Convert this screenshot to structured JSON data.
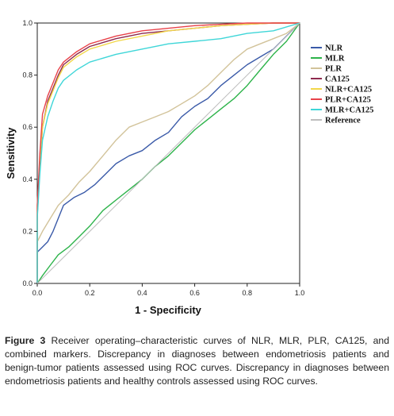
{
  "chart_data": {
    "type": "line",
    "xlabel": "1 - Specificity",
    "ylabel": "Sensitivity",
    "xlim": [
      0.0,
      1.0
    ],
    "ylim": [
      0.0,
      1.0
    ],
    "xticks": [
      "0.0",
      "0.2",
      "0.4",
      "0.6",
      "0.8",
      "1.0"
    ],
    "yticks": [
      "0.0",
      "0.2",
      "0.4",
      "0.6",
      "0.8",
      "1.0"
    ],
    "grid": false,
    "legend_position": "right",
    "series": [
      {
        "name": "NLR",
        "color": "#3a5aa8",
        "x": [
          0,
          0,
          0.02,
          0.04,
          0.06,
          0.08,
          0.1,
          0.14,
          0.18,
          0.22,
          0.26,
          0.3,
          0.35,
          0.4,
          0.45,
          0.5,
          0.55,
          0.6,
          0.65,
          0.7,
          0.75,
          0.8,
          0.85,
          0.9,
          0.95,
          1.0
        ],
        "y": [
          0,
          0.12,
          0.14,
          0.16,
          0.2,
          0.25,
          0.3,
          0.33,
          0.35,
          0.38,
          0.42,
          0.46,
          0.49,
          0.51,
          0.55,
          0.58,
          0.64,
          0.68,
          0.71,
          0.76,
          0.8,
          0.84,
          0.87,
          0.9,
          0.95,
          1.0
        ]
      },
      {
        "name": "MLR",
        "color": "#2db34a",
        "x": [
          0,
          0.02,
          0.05,
          0.08,
          0.12,
          0.16,
          0.2,
          0.25,
          0.3,
          0.35,
          0.4,
          0.45,
          0.5,
          0.55,
          0.6,
          0.65,
          0.7,
          0.75,
          0.8,
          0.85,
          0.9,
          0.95,
          1.0
        ],
        "y": [
          0,
          0.03,
          0.07,
          0.11,
          0.14,
          0.18,
          0.22,
          0.28,
          0.32,
          0.36,
          0.4,
          0.45,
          0.49,
          0.54,
          0.59,
          0.63,
          0.67,
          0.71,
          0.76,
          0.82,
          0.88,
          0.93,
          1.0
        ]
      },
      {
        "name": "PLR",
        "color": "#d2c39a",
        "x": [
          0,
          0,
          0.02,
          0.05,
          0.08,
          0.12,
          0.16,
          0.2,
          0.25,
          0.3,
          0.35,
          0.4,
          0.45,
          0.5,
          0.55,
          0.6,
          0.65,
          0.7,
          0.75,
          0.8,
          0.85,
          0.9,
          0.95,
          1.0
        ],
        "y": [
          0,
          0.16,
          0.2,
          0.25,
          0.3,
          0.34,
          0.39,
          0.43,
          0.49,
          0.55,
          0.6,
          0.62,
          0.64,
          0.66,
          0.69,
          0.72,
          0.76,
          0.81,
          0.86,
          0.9,
          0.92,
          0.94,
          0.96,
          1.0
        ]
      },
      {
        "name": "CA125",
        "color": "#8e2a4e",
        "x": [
          0,
          0,
          0.01,
          0.02,
          0.04,
          0.06,
          0.08,
          0.1,
          0.15,
          0.2,
          0.3,
          0.4,
          0.5,
          0.6,
          0.7,
          0.8,
          0.9,
          1.0
        ],
        "y": [
          0,
          0.26,
          0.45,
          0.6,
          0.7,
          0.75,
          0.8,
          0.84,
          0.88,
          0.91,
          0.94,
          0.96,
          0.97,
          0.98,
          0.99,
          0.995,
          1.0,
          1.0
        ]
      },
      {
        "name": "NLR+CA125",
        "color": "#f2d74a",
        "x": [
          0,
          0,
          0.01,
          0.02,
          0.04,
          0.06,
          0.08,
          0.1,
          0.15,
          0.2,
          0.3,
          0.4,
          0.5,
          0.6,
          0.7,
          0.8,
          0.9,
          1.0
        ],
        "y": [
          0,
          0.3,
          0.47,
          0.6,
          0.69,
          0.74,
          0.79,
          0.83,
          0.87,
          0.9,
          0.93,
          0.95,
          0.97,
          0.98,
          0.99,
          0.995,
          1.0,
          1.0
        ]
      },
      {
        "name": "PLR+CA125",
        "color": "#e8424a",
        "x": [
          0,
          0,
          0.01,
          0.02,
          0.04,
          0.06,
          0.08,
          0.1,
          0.15,
          0.2,
          0.3,
          0.4,
          0.5,
          0.6,
          0.7,
          0.8,
          0.9,
          1.0
        ],
        "y": [
          0,
          0.3,
          0.5,
          0.65,
          0.72,
          0.77,
          0.82,
          0.85,
          0.89,
          0.92,
          0.95,
          0.97,
          0.98,
          0.99,
          0.995,
          1.0,
          1.0,
          1.0
        ]
      },
      {
        "name": "MLR+CA125",
        "color": "#3fd6d8",
        "x": [
          0,
          0,
          0.01,
          0.02,
          0.04,
          0.06,
          0.08,
          0.1,
          0.15,
          0.2,
          0.3,
          0.4,
          0.5,
          0.6,
          0.7,
          0.8,
          0.9,
          1.0
        ],
        "y": [
          0,
          0.25,
          0.42,
          0.55,
          0.64,
          0.7,
          0.75,
          0.78,
          0.82,
          0.85,
          0.88,
          0.9,
          0.92,
          0.93,
          0.94,
          0.96,
          0.97,
          1.0
        ]
      },
      {
        "name": "Reference",
        "color": "#bdbdbd",
        "x": [
          0,
          1
        ],
        "y": [
          0,
          1
        ]
      }
    ]
  },
  "caption": {
    "label": "Figure 3",
    "text": "Receiver operating–characteristic curves of NLR, MLR, PLR, CA125, and combined markers. Discrepancy in diagnoses between endometriosis patients and benign-tumor patients assessed using ROC curves. Discrepancy in diagnoses between endometriosis patients and healthy controls assessed using ROC curves."
  }
}
